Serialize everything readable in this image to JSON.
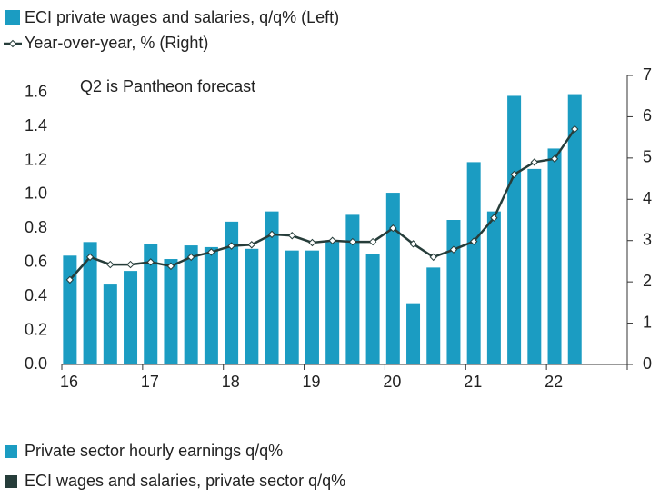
{
  "chart_data": {
    "type": "bar-line",
    "annotation": "Q2 is Pantheon forecast",
    "x": [
      16.1,
      16.35,
      16.6,
      16.85,
      17.1,
      17.35,
      17.6,
      17.85,
      18.1,
      18.35,
      18.6,
      18.85,
      19.1,
      19.35,
      19.6,
      19.85,
      20.1,
      20.35,
      20.6,
      20.85,
      21.1,
      21.35,
      21.6,
      21.85,
      22.1,
      22.35
    ],
    "series": [
      {
        "name": "ECI private wages and salaries, q/q% (Left)",
        "type": "bar",
        "color": "#1b9cc2",
        "values": [
          0.64,
          0.72,
          0.47,
          0.55,
          0.71,
          0.62,
          0.7,
          0.69,
          0.84,
          0.68,
          0.9,
          0.67,
          0.67,
          0.72,
          0.88,
          0.65,
          1.01,
          0.36,
          0.57,
          0.85,
          1.19,
          0.9,
          1.58,
          1.15,
          1.27,
          1.59
        ]
      },
      {
        "name": "Year-over-year, % (Right)",
        "type": "line",
        "axis": "y2",
        "color": "#263d3a",
        "values": [
          2.05,
          2.6,
          2.42,
          2.42,
          2.48,
          2.38,
          2.6,
          2.72,
          2.87,
          2.9,
          3.15,
          3.12,
          2.95,
          3.0,
          2.97,
          2.97,
          3.3,
          2.92,
          2.6,
          2.78,
          2.98,
          3.55,
          4.6,
          4.9,
          4.98,
          5.7
        ]
      }
    ],
    "xlim": [
      16,
      23
    ],
    "xticks": [
      16,
      17,
      18,
      19,
      20,
      21,
      22
    ],
    "ylim": [
      0,
      1.7
    ],
    "yticks": [
      {
        "value": 0,
        "label": "0.0"
      },
      0.2,
      0.4,
      0.6,
      0.8,
      {
        "value": 1,
        "label": "1.0"
      },
      1.2,
      1.4,
      1.6
    ],
    "y2lim": [
      0,
      7
    ],
    "y2ticks": [
      0,
      1,
      2,
      3,
      4,
      5,
      6,
      7
    ],
    "extra_legend": [
      {
        "name": "Private sector hourly earnings q/q%",
        "color": "#1b9cc2"
      },
      {
        "name": "ECI wages and salaries, private sector q/q%",
        "color": "#263d3a"
      }
    ]
  }
}
